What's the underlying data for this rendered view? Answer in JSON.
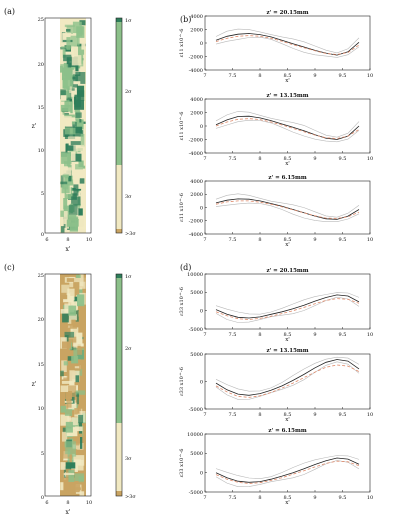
{
  "colors": {
    "dark_green": "#2e7d5a",
    "mid_green": "#8cc08a",
    "light_yellow": "#f1e9c2",
    "tan": "#c9a462",
    "gray_band": "#b9b9b9",
    "mean_line": "#222222",
    "dashed_line": "#e08a6a"
  },
  "panels": {
    "a": {
      "label": "(a)",
      "xlabel": "x'",
      "ylabel": "z'",
      "xticks": [
        "6",
        "8",
        "10"
      ],
      "yticks": [
        "0",
        "5",
        "10",
        "15",
        "20",
        "25"
      ]
    },
    "c": {
      "label": "(c)",
      "xlabel": "x'",
      "ylabel": "z'",
      "xticks": [
        "6",
        "8",
        "10"
      ],
      "yticks": [
        "0",
        "5",
        "10",
        "15",
        "20",
        "25"
      ]
    },
    "b": {
      "label": "(b)"
    },
    "d": {
      "label": "(d)"
    }
  },
  "colorbar_top": {
    "labels": [
      "1σ",
      "2σ",
      "3σ",
      ">3σ"
    ]
  },
  "colorbar_bottom": {
    "labels": [
      "1σ",
      "2σ",
      "3σ",
      ">3σ"
    ]
  },
  "chart_data": [
    {
      "type": "line",
      "panel": "b",
      "title": "z' = 20.15mm",
      "ylabel": "ε11 x10^-6",
      "xlabel": "x'",
      "xlim": [
        7,
        10
      ],
      "ylim": [
        -4000,
        4000
      ],
      "xticks": [
        "7",
        "7.5",
        "8",
        "8.5",
        "9",
        "9.5",
        "10"
      ],
      "yticks": [
        "4000",
        "2000",
        "0",
        "-2000",
        "-4000"
      ],
      "x": [
        7.2,
        7.4,
        7.6,
        7.8,
        8.0,
        8.2,
        8.4,
        8.6,
        8.8,
        9.0,
        9.2,
        9.4,
        9.6,
        9.8
      ],
      "series": [
        {
          "values": [
            400,
            1000,
            1300,
            1400,
            1250,
            900,
            400,
            -100,
            -600,
            -1100,
            -1500,
            -1800,
            -1300,
            100
          ]
        },
        {
          "values": [
            200,
            700,
            1000,
            1100,
            1000,
            700,
            250,
            -250,
            -700,
            -1150,
            -1550,
            -1700,
            -1400,
            -300
          ]
        }
      ]
    },
    {
      "type": "line",
      "panel": "b",
      "title": "z' = 13.15mm",
      "ylabel": "ε11 x10^-6",
      "xlabel": "x'",
      "xlim": [
        7,
        10
      ],
      "ylim": [
        -4000,
        4000
      ],
      "xticks": [
        "7",
        "7.5",
        "8",
        "8.5",
        "9",
        "9.5",
        "10"
      ],
      "yticks": [
        "4000",
        "2000",
        "0",
        "-2000",
        "-4000"
      ],
      "x": [
        7.2,
        7.4,
        7.6,
        7.8,
        8.0,
        8.2,
        8.4,
        8.6,
        8.8,
        9.0,
        9.2,
        9.4,
        9.6,
        9.8
      ],
      "series": [
        {
          "values": [
            200,
            900,
            1400,
            1450,
            1200,
            800,
            300,
            -200,
            -700,
            -1300,
            -1800,
            -2000,
            -1500,
            0
          ]
        },
        {
          "values": [
            0,
            600,
            1000,
            1100,
            950,
            600,
            150,
            -350,
            -850,
            -1350,
            -1750,
            -1850,
            -1500,
            -500
          ]
        }
      ]
    },
    {
      "type": "line",
      "panel": "b",
      "title": "z' = 6.15mm",
      "ylabel": "ε11 x10^-6",
      "xlabel": "x'",
      "xlim": [
        7,
        10
      ],
      "ylim": [
        -4000,
        4000
      ],
      "xticks": [
        "7",
        "7.5",
        "8",
        "8.5",
        "9",
        "9.5",
        "10"
      ],
      "yticks": [
        "4000",
        "2000",
        "0",
        "-2000",
        "-4000"
      ],
      "x": [
        7.2,
        7.4,
        7.6,
        7.8,
        8.0,
        8.2,
        8.4,
        8.6,
        8.8,
        9.0,
        9.2,
        9.4,
        9.6,
        9.8
      ],
      "series": [
        {
          "values": [
            700,
            1100,
            1300,
            1250,
            1000,
            600,
            200,
            -300,
            -800,
            -1300,
            -1700,
            -1800,
            -1300,
            -300
          ]
        },
        {
          "values": [
            500,
            850,
            1000,
            1000,
            800,
            500,
            100,
            -350,
            -800,
            -1250,
            -1600,
            -1650,
            -1400,
            -700
          ]
        }
      ]
    },
    {
      "type": "line",
      "panel": "d",
      "title": "z' = 20.15mm",
      "ylabel": "ε33 x10^-6",
      "xlabel": "x'",
      "xlim": [
        7,
        10
      ],
      "ylim": [
        -5000,
        10000
      ],
      "xticks": [
        "7",
        "7.5",
        "8",
        "8.5",
        "9",
        "9.5",
        "10"
      ],
      "yticks": [
        "10000",
        "5000",
        "0",
        "-5000"
      ],
      "x": [
        7.2,
        7.4,
        7.6,
        7.8,
        8.0,
        8.2,
        8.4,
        8.6,
        8.8,
        9.0,
        9.2,
        9.4,
        9.6,
        9.8
      ],
      "series": [
        {
          "values": [
            300,
            -1000,
            -1800,
            -2000,
            -1700,
            -1000,
            -300,
            500,
            1500,
            2600,
            3600,
            4300,
            4000,
            2400
          ]
        },
        {
          "values": [
            -300,
            -1400,
            -2200,
            -2400,
            -2100,
            -1500,
            -800,
            0,
            900,
            1900,
            2800,
            3300,
            3100,
            2000
          ]
        }
      ]
    },
    {
      "type": "line",
      "panel": "d",
      "title": "z' = 13.15mm",
      "ylabel": "ε33 x10^-6",
      "xlabel": "x'",
      "xlim": [
        7,
        10
      ],
      "ylim": [
        -5000,
        5000
      ],
      "xticks": [
        "7",
        "7.5",
        "8",
        "8.5",
        "9",
        "9.5",
        "10"
      ],
      "yticks": [
        "5000",
        "0",
        "-5000"
      ],
      "x": [
        7.2,
        7.4,
        7.6,
        7.8,
        8.0,
        8.2,
        8.4,
        8.6,
        8.8,
        9.0,
        9.2,
        9.4,
        9.6,
        9.8
      ],
      "series": [
        {
          "values": [
            -300,
            -1500,
            -2300,
            -2500,
            -2200,
            -1600,
            -800,
            200,
            1300,
            2500,
            3500,
            4000,
            3700,
            2300
          ]
        },
        {
          "values": [
            -800,
            -1900,
            -2700,
            -2900,
            -2600,
            -2000,
            -1200,
            -300,
            700,
            1700,
            2600,
            3000,
            2800,
            1800
          ]
        }
      ]
    },
    {
      "type": "line",
      "panel": "d",
      "title": "z' = 6.15mm",
      "ylabel": "ε33 x10^-6",
      "xlabel": "x'",
      "xlim": [
        7,
        10
      ],
      "ylim": [
        -5000,
        10000
      ],
      "xticks": [
        "7",
        "7.5",
        "8",
        "8.5",
        "9",
        "9.5",
        "10"
      ],
      "yticks": [
        "10000",
        "5000",
        "0",
        "-5000"
      ],
      "x": [
        7.2,
        7.4,
        7.6,
        7.8,
        8.0,
        8.2,
        8.4,
        8.6,
        8.8,
        9.0,
        9.2,
        9.4,
        9.6,
        9.8
      ],
      "series": [
        {
          "values": [
            0,
            -1300,
            -2200,
            -2500,
            -2300,
            -1700,
            -900,
            0,
            1000,
            2100,
            3100,
            3800,
            3500,
            2200
          ]
        },
        {
          "values": [
            -500,
            -1700,
            -2500,
            -2800,
            -2600,
            -2000,
            -1300,
            -400,
            500,
            1500,
            2400,
            3000,
            2800,
            1800
          ]
        }
      ]
    }
  ]
}
